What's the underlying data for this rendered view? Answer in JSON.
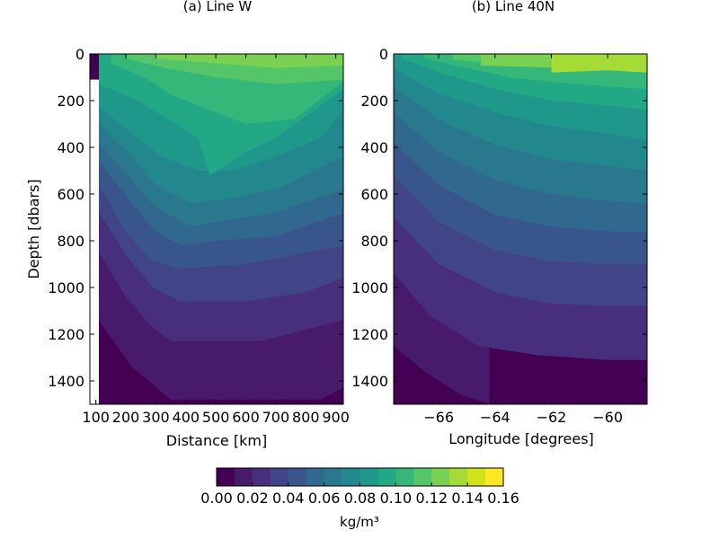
{
  "chart_data": [
    {
      "type": "contour",
      "title": "(a) Line W",
      "xlabel": "Distance [km]",
      "ylabel": "Depth [dbars]",
      "xlim": [
        80,
        925
      ],
      "ylim": [
        1500,
        0
      ],
      "xticks": [
        100,
        200,
        300,
        400,
        500,
        600,
        700,
        800,
        900
      ],
      "yticks": [
        0,
        200,
        400,
        600,
        800,
        1000,
        1200,
        1400
      ],
      "grid": false,
      "contours": [
        {
          "level": 0.01,
          "points": [
            [
              110,
              1140
            ],
            [
              220,
              1340
            ],
            [
              350,
              1480
            ],
            [
              850,
              1480
            ],
            [
              925,
              1430
            ]
          ]
        },
        {
          "level": 0.02,
          "points": [
            [
              110,
              850
            ],
            [
              200,
              1040
            ],
            [
              280,
              1160
            ],
            [
              350,
              1230
            ],
            [
              650,
              1230
            ],
            [
              800,
              1180
            ],
            [
              925,
              1140
            ]
          ]
        },
        {
          "level": 0.03,
          "points": [
            [
              110,
              680
            ],
            [
              200,
              860
            ],
            [
              290,
              1000
            ],
            [
              380,
              1060
            ],
            [
              600,
              1060
            ],
            [
              800,
              1020
            ],
            [
              925,
              960
            ]
          ]
        },
        {
          "level": 0.04,
          "points": [
            [
              110,
              560
            ],
            [
              200,
              760
            ],
            [
              280,
              880
            ],
            [
              380,
              920
            ],
            [
              600,
              900
            ],
            [
              925,
              820
            ]
          ]
        },
        {
          "level": 0.05,
          "points": [
            [
              110,
              460
            ],
            [
              220,
              640
            ],
            [
              300,
              760
            ],
            [
              380,
              820
            ],
            [
              500,
              800
            ],
            [
              700,
              780
            ],
            [
              925,
              680
            ]
          ]
        },
        {
          "level": 0.06,
          "points": [
            [
              110,
              380
            ],
            [
              220,
              540
            ],
            [
              300,
              660
            ],
            [
              420,
              740
            ],
            [
              500,
              720
            ],
            [
              700,
              680
            ],
            [
              925,
              580
            ]
          ]
        },
        {
          "level": 0.07,
          "points": [
            [
              110,
              300
            ],
            [
              220,
              440
            ],
            [
              300,
              560
            ],
            [
              420,
              640
            ],
            [
              540,
              620
            ],
            [
              700,
              580
            ],
            [
              925,
              440
            ]
          ]
        },
        {
          "level": 0.08,
          "points": [
            [
              110,
              230
            ],
            [
              220,
              340
            ],
            [
              320,
              440
            ],
            [
              440,
              500
            ],
            [
              560,
              500
            ],
            [
              700,
              440
            ],
            [
              850,
              360
            ],
            [
              925,
              240
            ]
          ]
        },
        {
          "level": 0.09,
          "points": [
            [
              110,
              130
            ],
            [
              240,
              200
            ],
            [
              340,
              280
            ],
            [
              440,
              360
            ],
            [
              480,
              520
            ],
            [
              600,
              420
            ],
            [
              700,
              360
            ],
            [
              925,
              150
            ]
          ]
        },
        {
          "level": 0.1,
          "points": [
            [
              150,
              40
            ],
            [
              260,
              100
            ],
            [
              360,
              180
            ],
            [
              480,
              240
            ],
            [
              600,
              300
            ],
            [
              760,
              280
            ],
            [
              925,
              120
            ]
          ]
        },
        {
          "level": 0.11,
          "points": [
            [
              200,
              20
            ],
            [
              330,
              60
            ],
            [
              500,
              100
            ],
            [
              700,
              130
            ],
            [
              925,
              110
            ]
          ]
        },
        {
          "level": 0.12,
          "points": [
            [
              300,
              20
            ],
            [
              500,
              40
            ],
            [
              700,
              60
            ],
            [
              925,
              50
            ]
          ]
        }
      ]
    },
    {
      "type": "contour",
      "title": "(b) Line 40N",
      "xlabel": "Longitude [degrees]",
      "ylabel": "",
      "xlim": [
        -67.6,
        -58.6
      ],
      "ylim": [
        1500,
        0
      ],
      "xticks": [
        -66,
        -64,
        -62,
        -60
      ],
      "xtick_labels": [
        "−66",
        "−64",
        "−62",
        "−60"
      ],
      "yticks": [
        0,
        200,
        400,
        600,
        800,
        1000,
        1200,
        1400
      ],
      "grid": false,
      "contours": [
        {
          "level": 0.01,
          "points": [
            [
              -67.6,
              1250
            ],
            [
              -66.5,
              1360
            ],
            [
              -65.2,
              1460
            ],
            [
              -64.2,
              1500
            ]
          ]
        },
        {
          "level": 0.02,
          "points": [
            [
              -67.6,
              940
            ],
            [
              -66.3,
              1120
            ],
            [
              -64.6,
              1250
            ],
            [
              -62.5,
              1290
            ],
            [
              -60,
              1310
            ],
            [
              -58.6,
              1310
            ]
          ]
        },
        {
          "level": 0.03,
          "points": [
            [
              -67.6,
              700
            ],
            [
              -66,
              900
            ],
            [
              -64,
              1020
            ],
            [
              -62,
              1070
            ],
            [
              -60,
              1080
            ],
            [
              -58.6,
              1080
            ]
          ]
        },
        {
          "level": 0.04,
          "points": [
            [
              -67.6,
              520
            ],
            [
              -66,
              720
            ],
            [
              -64,
              840
            ],
            [
              -62,
              890
            ],
            [
              -60,
              900
            ],
            [
              -58.6,
              900
            ]
          ]
        },
        {
          "level": 0.05,
          "points": [
            [
              -67.6,
              380
            ],
            [
              -66,
              560
            ],
            [
              -64,
              690
            ],
            [
              -62,
              740
            ],
            [
              -60,
              760
            ],
            [
              -58.6,
              760
            ]
          ]
        },
        {
          "level": 0.06,
          "points": [
            [
              -67.6,
              250
            ],
            [
              -66,
              420
            ],
            [
              -64,
              540
            ],
            [
              -62,
              600
            ],
            [
              -60,
              630
            ],
            [
              -58.6,
              640
            ]
          ]
        },
        {
          "level": 0.07,
          "points": [
            [
              -67.6,
              140
            ],
            [
              -66,
              280
            ],
            [
              -64,
              390
            ],
            [
              -62,
              450
            ],
            [
              -60,
              480
            ],
            [
              -58.6,
              500
            ]
          ]
        },
        {
          "level": 0.08,
          "points": [
            [
              -67.6,
              60
            ],
            [
              -66,
              170
            ],
            [
              -64,
              250
            ],
            [
              -62,
              310
            ],
            [
              -60,
              340
            ],
            [
              -58.6,
              370
            ]
          ]
        },
        {
          "level": 0.09,
          "points": [
            [
              -67.3,
              20
            ],
            [
              -66,
              80
            ],
            [
              -64,
              150
            ],
            [
              -62,
              200
            ],
            [
              -60,
              220
            ],
            [
              -58.6,
              240
            ]
          ]
        },
        {
          "level": 0.1,
          "points": [
            [
              -66.5,
              20
            ],
            [
              -65,
              60
            ],
            [
              -63.5,
              100
            ],
            [
              -62,
              120
            ],
            [
              -60,
              140
            ],
            [
              -58.6,
              150
            ]
          ]
        },
        {
          "level": 0.11,
          "points": [
            [
              -65.5,
              25
            ],
            [
              -64,
              40
            ],
            [
              -62,
              60
            ],
            [
              -60,
              70
            ],
            [
              -58.6,
              75
            ]
          ]
        },
        {
          "level": 0.12,
          "points": [
            [
              -64.5,
              50
            ],
            [
              -61.5,
              60
            ],
            [
              -59,
              50
            ],
            [
              -58.6,
              50
            ]
          ]
        },
        {
          "level": 0.13,
          "points": [
            [
              -62,
              80
            ],
            [
              -60,
              70
            ],
            [
              -58.6,
              80
            ]
          ]
        }
      ]
    }
  ],
  "colorbar": {
    "label": "kg/m³",
    "levels": [
      0.0,
      0.01,
      0.02,
      0.03,
      0.04,
      0.05,
      0.06,
      0.07,
      0.08,
      0.09,
      0.1,
      0.11,
      0.12,
      0.13,
      0.14,
      0.15,
      0.16
    ],
    "ticks": [
      "0.00",
      "0.02",
      "0.04",
      "0.06",
      "0.08",
      "0.10",
      "0.12",
      "0.14",
      "0.16"
    ],
    "colors": [
      "#440154",
      "#481a6c",
      "#472f7d",
      "#414487",
      "#39568c",
      "#31688e",
      "#2a788e",
      "#23888e",
      "#1f988b",
      "#22a884",
      "#35b779",
      "#54c568",
      "#7ad151",
      "#a5db36",
      "#d2e21b",
      "#fde725"
    ]
  }
}
